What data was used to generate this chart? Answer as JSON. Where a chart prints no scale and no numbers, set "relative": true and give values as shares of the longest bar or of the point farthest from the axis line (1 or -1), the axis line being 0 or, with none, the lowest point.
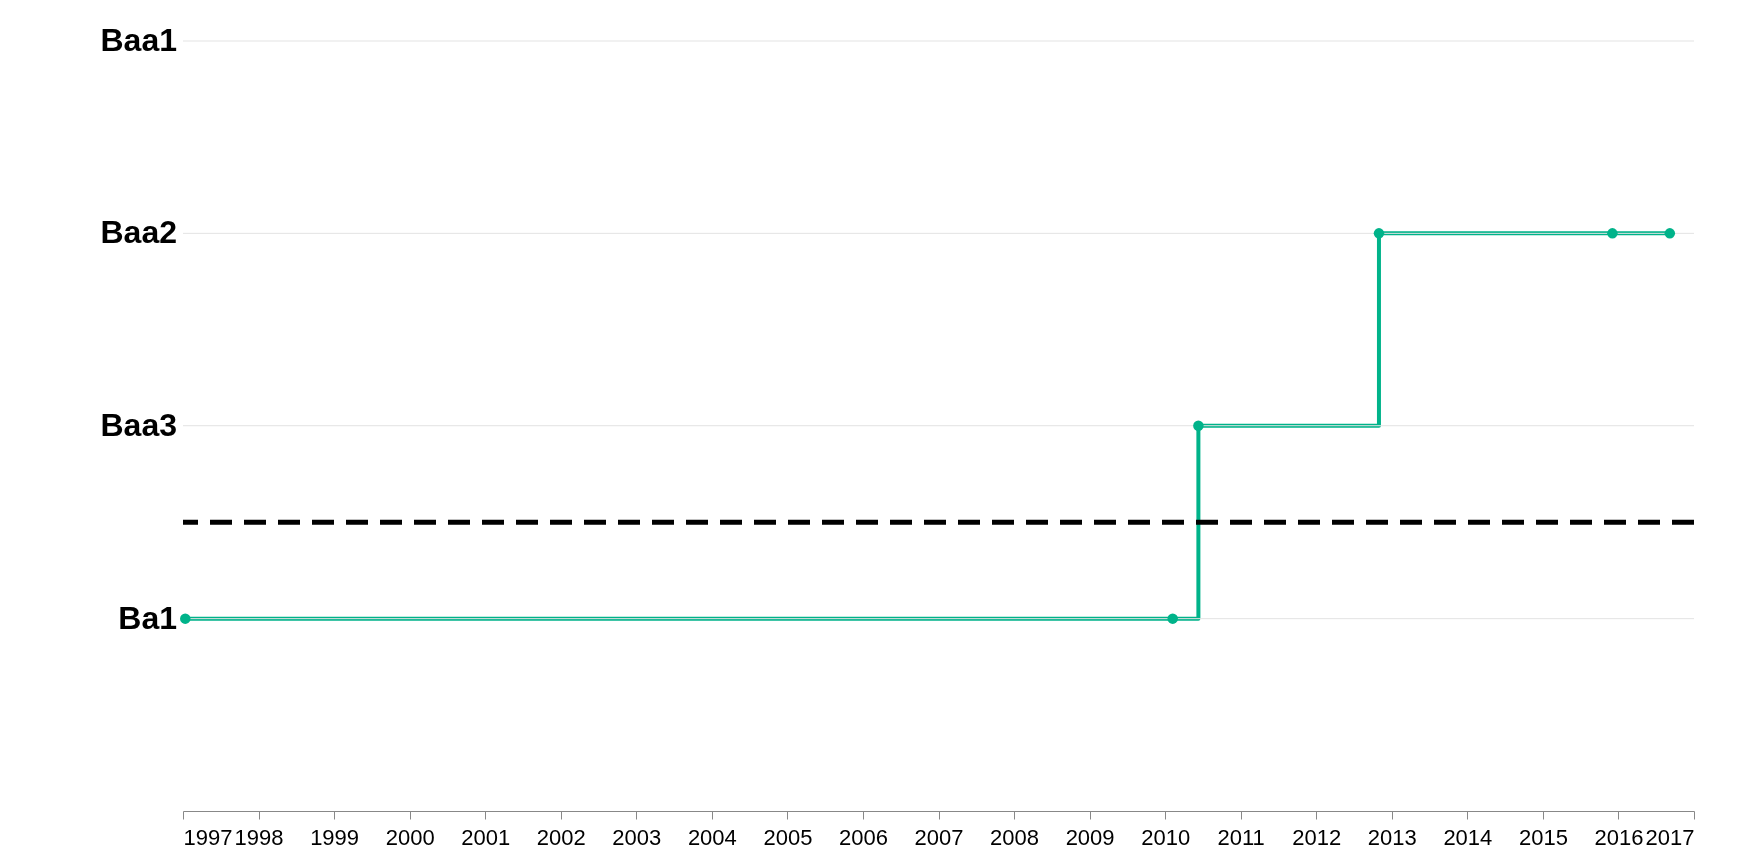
{
  "chart_data": {
    "type": "step",
    "relative": true,
    "x": [
      1997.03,
      2010.1,
      2010.44,
      2012.83,
      2015.92,
      2016.68
    ],
    "series": [
      {
        "color": "#00b38a",
        "values": [
          0.333,
          0.333,
          0.667,
          1,
          1,
          1
        ]
      }
    ],
    "xlim": [
      1997,
      2017
    ],
    "xticks": [
      1997,
      1998,
      1999,
      2000,
      2001,
      2002,
      2003,
      2004,
      2005,
      2006,
      2007,
      2008,
      2009,
      2010,
      2011,
      2012,
      2013,
      2014,
      2015,
      2016,
      2017
    ],
    "marker": "circle",
    "line_style": "solid",
    "ref_lines": [
      {
        "axis": "y",
        "value": 0.333,
        "label": "Ba1",
        "color": "#e3e3e3",
        "line_style": "solid"
      },
      {
        "axis": "y",
        "value": 0.667,
        "label": "Baa3",
        "color": "#e3e3e3",
        "line_style": "solid"
      },
      {
        "axis": "y",
        "value": 1,
        "label": "Baa2",
        "color": "#e3e3e3",
        "line_style": "solid"
      },
      {
        "axis": "y",
        "value": 1.333,
        "label": "Baa1",
        "color": "#e3e3e3",
        "line_style": "solid"
      },
      {
        "axis": "y",
        "value": 0.5,
        "color": "#000000",
        "line_style": "dashed"
      }
    ]
  }
}
